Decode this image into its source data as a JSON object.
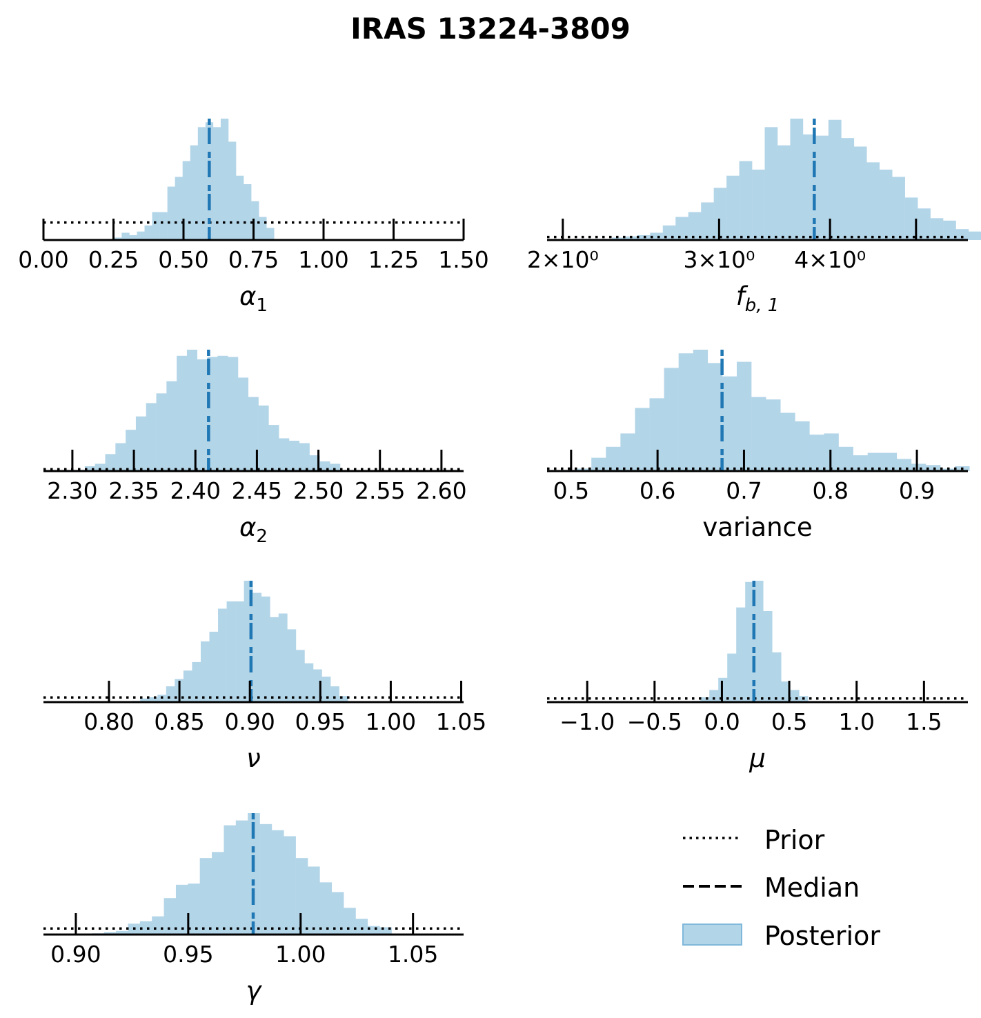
{
  "title": "IRAS 13224-3809",
  "colors": {
    "posterior": "#b3d5e8",
    "median": "#1f77b4",
    "prior": "#000000",
    "axis": "#000000"
  },
  "legend": {
    "location": "bottom-right",
    "items": [
      {
        "label": "Prior",
        "style": "dotted"
      },
      {
        "label": "Median",
        "style": "dashed"
      },
      {
        "label": "Posterior",
        "style": "patch"
      }
    ]
  },
  "chart_data": [
    {
      "type": "bar",
      "name": "alpha1",
      "xlabel": "α",
      "xlabel_sub": "1",
      "scale": "linear",
      "xlim": [
        0.0,
        1.5
      ],
      "ticks": [
        0.0,
        0.25,
        0.5,
        0.75,
        1.0,
        1.25,
        1.5
      ],
      "tick_labels": [
        "0.00",
        "0.25",
        "0.50",
        "0.75",
        "1.00",
        "1.25",
        "1.50"
      ],
      "bin_start": 0.252,
      "bin_width": 0.0272,
      "posterior_rel": [
        0.02,
        0.06,
        0.04,
        0.07,
        0.12,
        0.23,
        0.23,
        0.44,
        0.52,
        0.65,
        0.78,
        0.93,
        0.97,
        0.93,
        1.0,
        0.81,
        0.53,
        0.46,
        0.32,
        0.19,
        0.1
      ],
      "median": 0.592,
      "prior_rel_level": 0.144
    },
    {
      "type": "bar",
      "name": "fb1",
      "xlabel": "f",
      "xlabel_sub": "b, 1",
      "scale": "log",
      "xlim": [
        1.92,
        5.72
      ],
      "ticks": [
        2,
        3,
        4,
        5
      ],
      "tick_labels": [
        "2×10⁰",
        "3×10⁰",
        "4×10⁰"
      ],
      "bin_start": 2.057,
      "bin_ratio": 1.0336,
      "posterior_rel": [
        0.01,
        0.01,
        0.01,
        0.02,
        0.03,
        0.04,
        0.06,
        0.12,
        0.19,
        0.23,
        0.31,
        0.43,
        0.53,
        0.65,
        0.58,
        0.93,
        0.78,
        1.0,
        0.87,
        0.86,
        0.99,
        0.84,
        0.77,
        0.64,
        0.58,
        0.52,
        0.35,
        0.26,
        0.18,
        0.16,
        0.09,
        0.07
      ],
      "median": 3.84,
      "prior_rel_level": 0.025
    },
    {
      "type": "bar",
      "name": "alpha2",
      "xlabel": "α",
      "xlabel_sub": "2",
      "scale": "linear",
      "xlim": [
        2.2765,
        2.618
      ],
      "ticks": [
        2.3,
        2.35,
        2.4,
        2.45,
        2.5,
        2.55,
        2.6
      ],
      "tick_labels": [
        "2.30",
        "2.35",
        "2.40",
        "2.45",
        "2.50",
        "2.55",
        "2.60"
      ],
      "bin_start": 2.2935,
      "bin_width": 0.0083,
      "posterior_rel": [
        0.01,
        0.01,
        0.04,
        0.06,
        0.14,
        0.23,
        0.34,
        0.45,
        0.56,
        0.64,
        0.74,
        0.95,
        1.0,
        0.92,
        0.94,
        0.95,
        0.94,
        0.77,
        0.61,
        0.54,
        0.38,
        0.27,
        0.25,
        0.23,
        0.13,
        0.08,
        0.06
      ],
      "median": 2.4107,
      "prior_rel_level": 0.015
    },
    {
      "type": "bar",
      "name": "variance",
      "xlabel": "variance",
      "xlabel_sub": "",
      "scale": "linear",
      "xlim": [
        0.4722,
        0.959
      ],
      "ticks": [
        0.5,
        0.6,
        0.7,
        0.8,
        0.9
      ],
      "tick_labels": [
        "0.5",
        "0.6",
        "0.7",
        "0.8",
        "0.9"
      ],
      "bin_start": 0.4898,
      "bin_width": 0.01682,
      "posterior_rel": [
        0.01,
        0.02,
        0.11,
        0.2,
        0.31,
        0.52,
        0.6,
        0.85,
        0.97,
        1.0,
        0.89,
        0.78,
        0.9,
        0.61,
        0.59,
        0.48,
        0.41,
        0.3,
        0.31,
        0.2,
        0.13,
        0.15,
        0.15,
        0.1,
        0.06,
        0.05,
        0.02,
        0.04
      ],
      "median": 0.6746,
      "prior_rel_level": 0.02
    },
    {
      "type": "bar",
      "name": "nu",
      "xlabel": "ν",
      "xlabel_sub": "",
      "scale": "linear",
      "xlim": [
        0.7535,
        1.0517
      ],
      "ticks": [
        0.8,
        0.85,
        0.9,
        0.95,
        1.0,
        1.05
      ],
      "tick_labels": [
        "0.80",
        "0.85",
        "0.90",
        "0.95",
        "1.00",
        "1.05"
      ],
      "bin_start": 0.816,
      "bin_width": 0.00614,
      "posterior_rel": [
        0.01,
        0.03,
        0.04,
        0.06,
        0.13,
        0.19,
        0.26,
        0.33,
        0.5,
        0.58,
        0.77,
        0.83,
        0.83,
        1.0,
        0.9,
        0.87,
        0.7,
        0.73,
        0.6,
        0.43,
        0.32,
        0.27,
        0.21,
        0.13,
        0.05
      ],
      "median": 0.9008,
      "prior_rel_level": 0.038
    },
    {
      "type": "bar",
      "name": "mu",
      "xlabel": "μ",
      "xlabel_sub": "",
      "scale": "linear",
      "xlim": [
        -1.298,
        1.826
      ],
      "ticks": [
        -1.0,
        -0.5,
        0.0,
        0.5,
        1.0,
        1.5
      ],
      "tick_labels": [
        "−1.0",
        "−0.5",
        "0.0",
        "0.5",
        "1.0",
        "1.5"
      ],
      "bin_start": -0.2267,
      "bin_width": 0.0666,
      "posterior_rel": [
        0.01,
        0.04,
        0.1,
        0.2,
        0.4,
        0.78,
        0.99,
        1.0,
        0.75,
        0.41,
        0.17,
        0.1,
        0.05
      ],
      "median": 0.2374,
      "prior_rel_level": 0.03
    },
    {
      "type": "bar",
      "name": "gamma",
      "xlabel": "γ",
      "xlabel_sub": "",
      "scale": "linear",
      "xlim": [
        0.8856,
        1.0725
      ],
      "ticks": [
        0.9,
        0.95,
        1.0,
        1.05
      ],
      "tick_labels": [
        "0.90",
        "0.95",
        "1.00",
        "1.05"
      ],
      "bin_start": 0.9072,
      "bin_width": 0.00533,
      "posterior_rel": [
        0.01,
        0.02,
        0.03,
        0.09,
        0.11,
        0.15,
        0.3,
        0.41,
        0.42,
        0.63,
        0.68,
        0.9,
        0.94,
        1.0,
        0.91,
        0.86,
        0.81,
        0.63,
        0.56,
        0.43,
        0.35,
        0.22,
        0.13,
        0.07,
        0.06
      ],
      "median": 0.9789,
      "prior_rel_level": 0.05
    }
  ]
}
